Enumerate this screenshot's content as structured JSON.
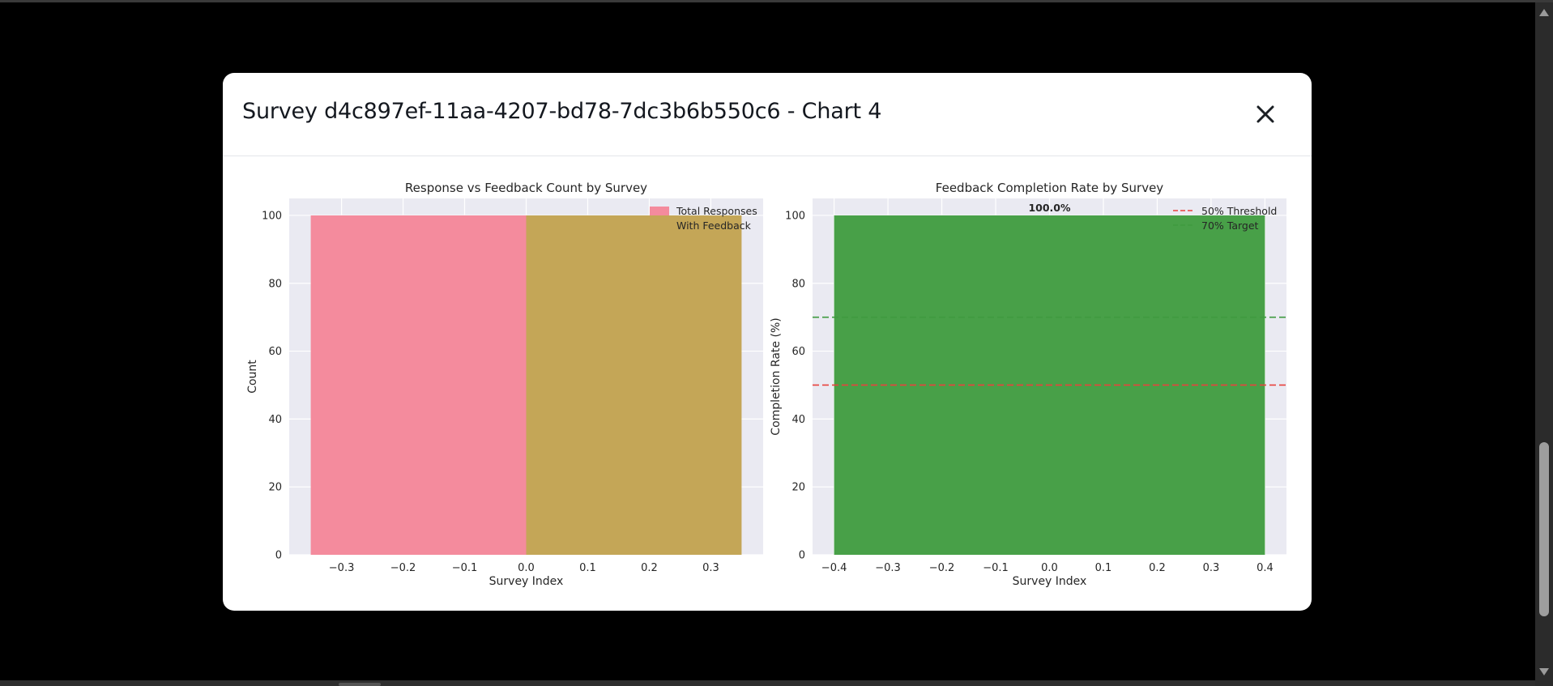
{
  "modal": {
    "title": "Survey d4c897ef-11aa-4207-bd78-7dc3b6b550c6 - Chart 4"
  },
  "icons": {
    "close": "close-icon (×)"
  },
  "colors": {
    "page_background": "#000000",
    "plot_background": "#eaeaf2",
    "total_responses": "#f48b9d",
    "with_feedback": "#c4a657",
    "completion_bar": "#48a048",
    "threshold_line": "#e8413c",
    "target_line": "#3f9a3f"
  },
  "chart_data": [
    {
      "type": "bar",
      "title": "Response vs Feedback Count by Survey",
      "xlabel": "Survey Index",
      "ylabel": "Count",
      "xlim": [
        -0.385,
        0.385
      ],
      "ylim": [
        0,
        105
      ],
      "xticks": [
        -0.3,
        -0.2,
        -0.1,
        0.0,
        0.1,
        0.2,
        0.3
      ],
      "xtick_labels": [
        "−0.3",
        "−0.2",
        "−0.1",
        "0.0",
        "0.1",
        "0.2",
        "0.3"
      ],
      "yticks": [
        0,
        20,
        40,
        60,
        80,
        100
      ],
      "ytick_labels": [
        "0",
        "20",
        "40",
        "60",
        "80",
        "100"
      ],
      "grid": true,
      "legend_position": "top-right",
      "series": [
        {
          "name": "Total Responses",
          "bars": [
            {
              "x_start": -0.35,
              "x_end": 0.0,
              "value": 100
            }
          ]
        },
        {
          "name": "With Feedback",
          "bars": [
            {
              "x_start": 0.0,
              "x_end": 0.35,
              "value": 100
            }
          ]
        }
      ]
    },
    {
      "type": "bar",
      "title": "Feedback Completion Rate by Survey",
      "xlabel": "Survey Index",
      "ylabel": "Completion Rate (%)",
      "xlim": [
        -0.44,
        0.44
      ],
      "ylim": [
        0,
        105
      ],
      "xticks": [
        -0.4,
        -0.3,
        -0.2,
        -0.1,
        0.0,
        0.1,
        0.2,
        0.3,
        0.4
      ],
      "xtick_labels": [
        "−0.4",
        "−0.3",
        "−0.2",
        "−0.1",
        "0.0",
        "0.1",
        "0.2",
        "0.3",
        "0.4"
      ],
      "yticks": [
        0,
        20,
        40,
        60,
        80,
        100
      ],
      "ytick_labels": [
        "0",
        "20",
        "40",
        "60",
        "80",
        "100"
      ],
      "grid": true,
      "legend_position": "top-right",
      "bars": [
        {
          "x_start": -0.4,
          "x_end": 0.4,
          "value": 100,
          "label": "100.0%"
        }
      ],
      "reference_lines": [
        {
          "name": "50% Threshold",
          "y": 50,
          "style": "dashed"
        },
        {
          "name": "70% Target",
          "y": 70,
          "style": "dashed"
        }
      ]
    }
  ]
}
